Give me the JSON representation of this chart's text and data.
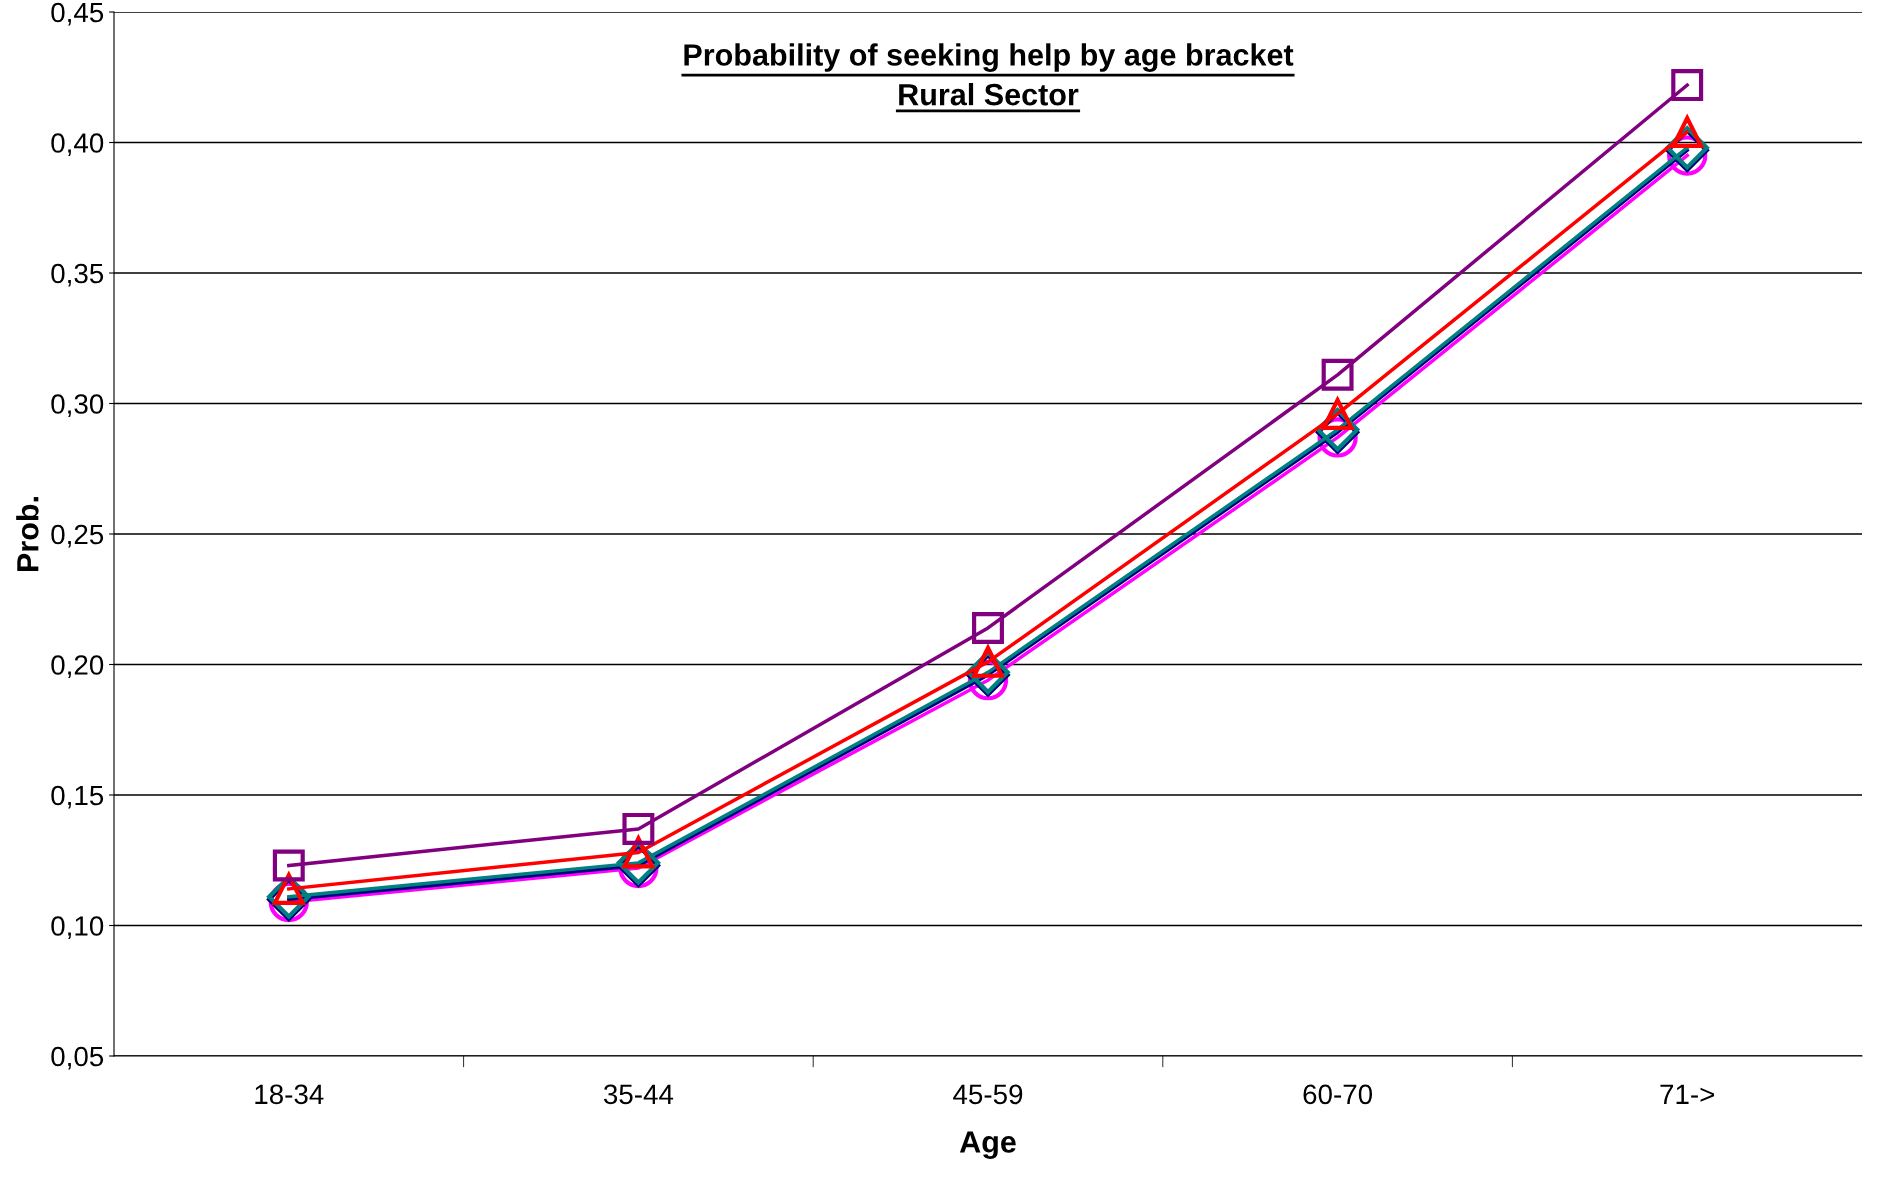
{
  "chart_data": {
    "type": "line",
    "title": "Probability of seeking help by age bracket\nRural Sector",
    "xlabel": "Age",
    "ylabel": "Prob.",
    "categories": [
      "18-34",
      "35-44",
      "45-59",
      "60-70",
      "71->"
    ],
    "series": [
      {
        "color": "#800080",
        "marker": "square",
        "values": [
          0.123,
          0.137,
          0.214,
          0.311,
          0.422
        ]
      },
      {
        "color": "#ff0000",
        "marker": "triangle",
        "values": [
          0.114,
          0.128,
          0.201,
          0.296,
          0.404
        ]
      },
      {
        "color": "#008080",
        "marker": "diamond",
        "values": [
          0.111,
          0.124,
          0.197,
          0.29,
          0.398
        ]
      },
      {
        "color": "#000080",
        "marker": "diamond",
        "values": [
          0.11,
          0.123,
          0.196,
          0.289,
          0.397
        ]
      },
      {
        "color": "#ff00ff",
        "marker": "circle",
        "values": [
          0.109,
          0.122,
          0.194,
          0.287,
          0.395
        ]
      }
    ],
    "ylim": [
      0.05,
      0.45
    ],
    "yticks": [
      {
        "value": 0.05,
        "label": "0,05"
      },
      {
        "value": 0.1,
        "label": "0,10"
      },
      {
        "value": 0.15,
        "label": "0,15"
      },
      {
        "value": 0.2,
        "label": "0,20"
      },
      {
        "value": 0.25,
        "label": "0,25"
      },
      {
        "value": 0.3,
        "label": "0,30"
      },
      {
        "value": 0.35,
        "label": "0,35"
      },
      {
        "value": 0.4,
        "label": "0,40"
      },
      {
        "value": 0.45,
        "label": "0,45"
      }
    ],
    "grid": "y",
    "legend": false
  }
}
